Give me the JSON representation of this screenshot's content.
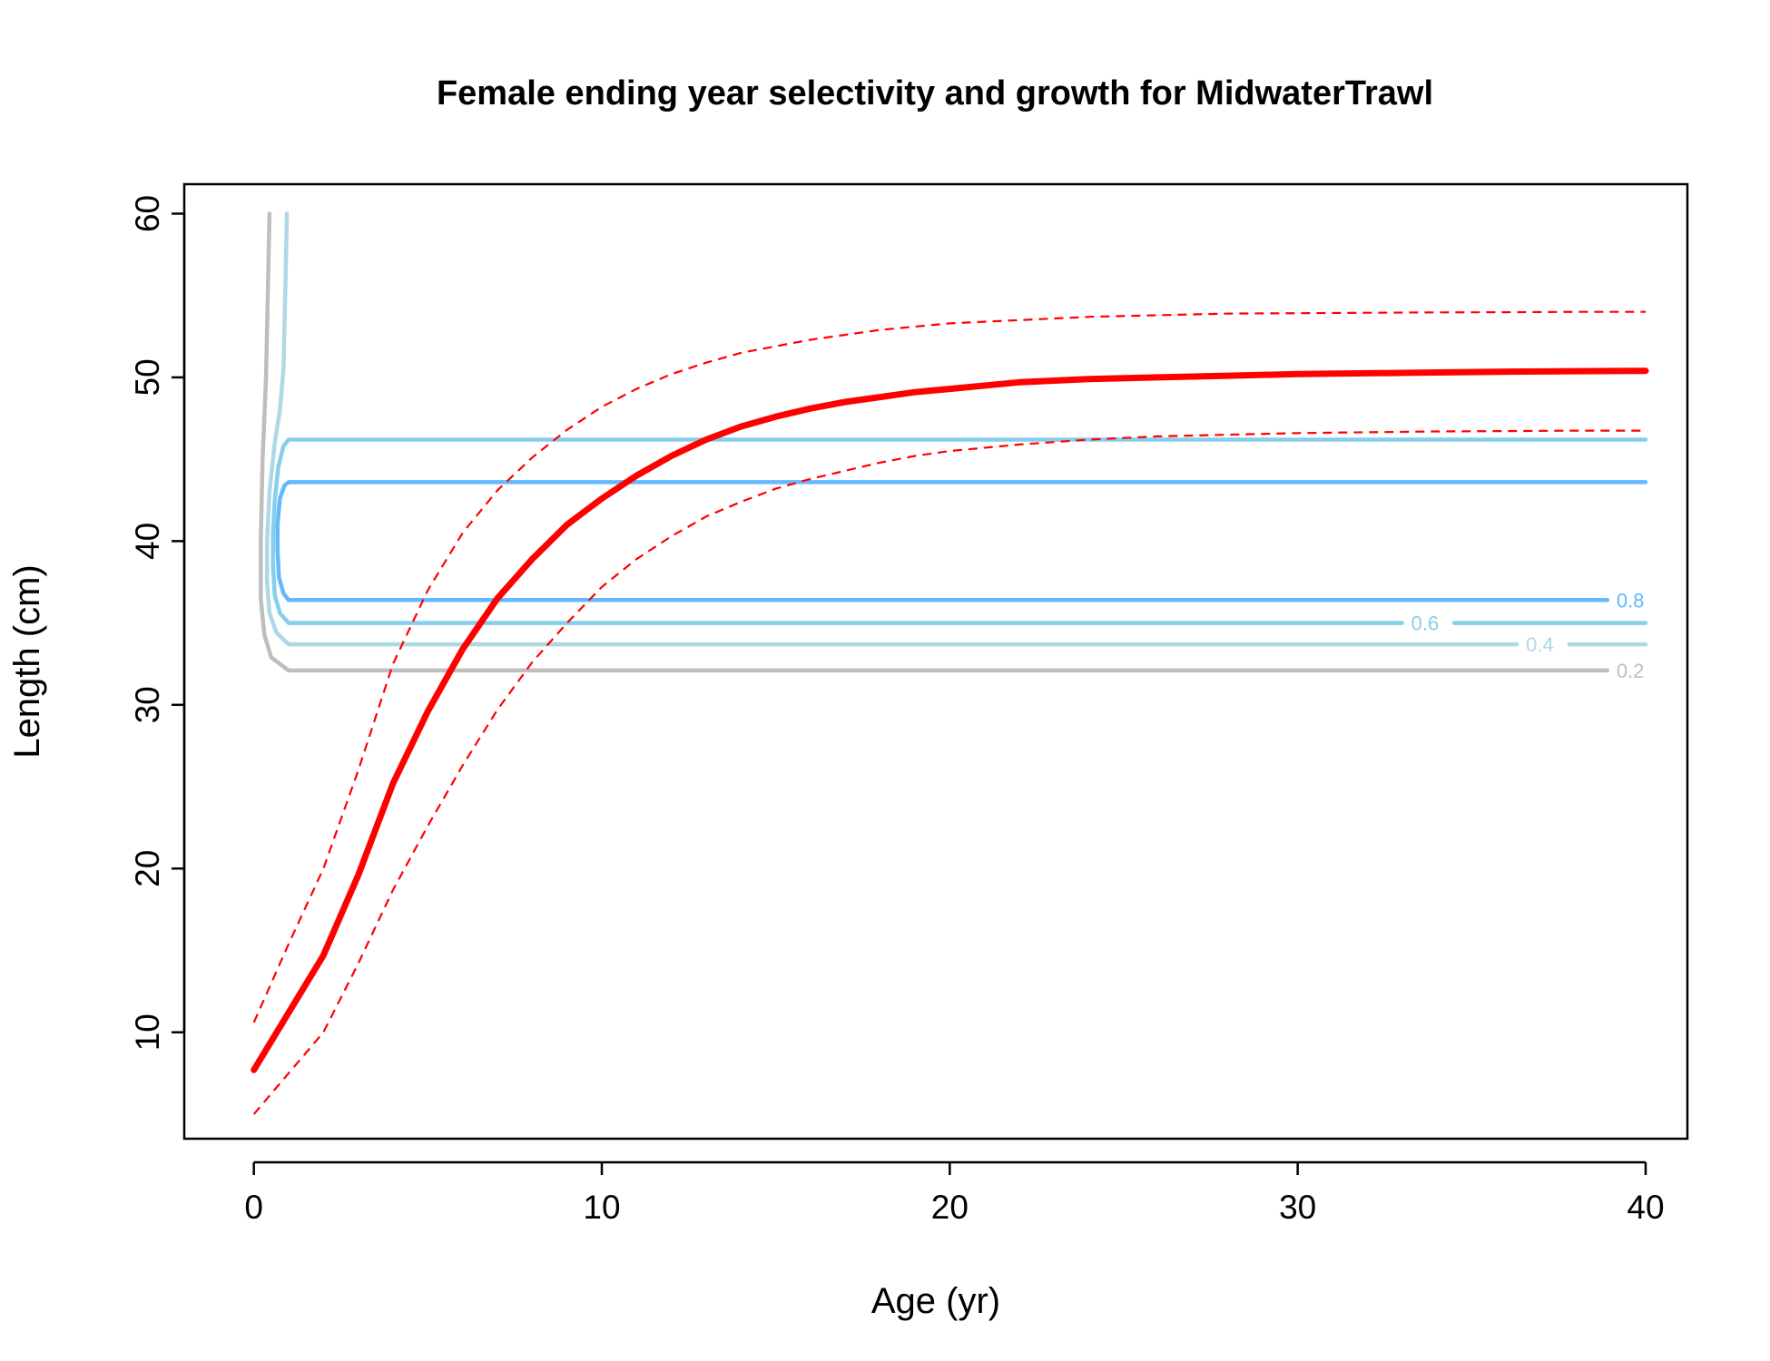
{
  "chart_data": {
    "type": "line",
    "title": "Female ending year selectivity and growth for MidwaterTrawl",
    "xlabel": "Age (yr)",
    "ylabel": "Length (cm)",
    "xlim": [
      -2,
      41.2
    ],
    "ylim": [
      3.5,
      61.8
    ],
    "x_ticks": [
      0,
      10,
      20,
      30,
      40
    ],
    "y_ticks": [
      10,
      20,
      30,
      40,
      50,
      60
    ],
    "grid": false,
    "growth": {
      "color": "#ff0000",
      "mean": [
        [
          0,
          7.7
        ],
        [
          1,
          11.2
        ],
        [
          2,
          14.7
        ],
        [
          3,
          19.6
        ],
        [
          4,
          25.2
        ],
        [
          5,
          29.6
        ],
        [
          6,
          33.4
        ],
        [
          7,
          36.5
        ],
        [
          8,
          38.9
        ],
        [
          9,
          41.0
        ],
        [
          10,
          42.6
        ],
        [
          11,
          44.0
        ],
        [
          12,
          45.2
        ],
        [
          13,
          46.2
        ],
        [
          14,
          47.0
        ],
        [
          15,
          47.6
        ],
        [
          16,
          48.1
        ],
        [
          17,
          48.5
        ],
        [
          18,
          48.8
        ],
        [
          19,
          49.1
        ],
        [
          20,
          49.3
        ],
        [
          22,
          49.7
        ],
        [
          24,
          49.9
        ],
        [
          26,
          50.0
        ],
        [
          28,
          50.1
        ],
        [
          30,
          50.2
        ],
        [
          32,
          50.25
        ],
        [
          34,
          50.3
        ],
        [
          36,
          50.35
        ],
        [
          38,
          50.38
        ],
        [
          40,
          50.4
        ]
      ],
      "upper": [
        [
          0,
          10.6
        ],
        [
          1,
          15.4
        ],
        [
          2,
          20.0
        ],
        [
          3,
          26.0
        ],
        [
          4,
          32.5
        ],
        [
          5,
          37.0
        ],
        [
          6,
          40.5
        ],
        [
          7,
          43.1
        ],
        [
          8,
          45.1
        ],
        [
          9,
          46.8
        ],
        [
          10,
          48.2
        ],
        [
          11,
          49.3
        ],
        [
          12,
          50.2
        ],
        [
          13,
          50.9
        ],
        [
          14,
          51.5
        ],
        [
          15,
          51.9
        ],
        [
          16,
          52.3
        ],
        [
          17,
          52.6
        ],
        [
          18,
          52.9
        ],
        [
          19,
          53.1
        ],
        [
          20,
          53.3
        ],
        [
          22,
          53.5
        ],
        [
          24,
          53.7
        ],
        [
          26,
          53.8
        ],
        [
          28,
          53.9
        ],
        [
          30,
          53.92
        ],
        [
          32,
          53.95
        ],
        [
          34,
          53.97
        ],
        [
          36,
          53.98
        ],
        [
          38,
          54.0
        ],
        [
          40,
          54.0
        ]
      ],
      "lower": [
        [
          0,
          5.0
        ],
        [
          1,
          7.5
        ],
        [
          2,
          10.0
        ],
        [
          3,
          14.2
        ],
        [
          4,
          18.7
        ],
        [
          5,
          22.6
        ],
        [
          6,
          26.3
        ],
        [
          7,
          29.7
        ],
        [
          8,
          32.6
        ],
        [
          9,
          35.0
        ],
        [
          10,
          37.2
        ],
        [
          11,
          38.9
        ],
        [
          12,
          40.3
        ],
        [
          13,
          41.5
        ],
        [
          14,
          42.4
        ],
        [
          15,
          43.2
        ],
        [
          16,
          43.8
        ],
        [
          17,
          44.3
        ],
        [
          18,
          44.8
        ],
        [
          19,
          45.2
        ],
        [
          20,
          45.5
        ],
        [
          22,
          45.9
        ],
        [
          24,
          46.2
        ],
        [
          26,
          46.4
        ],
        [
          28,
          46.5
        ],
        [
          30,
          46.6
        ],
        [
          32,
          46.65
        ],
        [
          34,
          46.7
        ],
        [
          36,
          46.72
        ],
        [
          38,
          46.75
        ],
        [
          40,
          46.75
        ]
      ]
    },
    "selectivity_contours": [
      {
        "level": 0.2,
        "label": "0.2",
        "color": "#bebebe",
        "points": [
          [
            38.9,
            32.1
          ],
          [
            1.0,
            32.1
          ],
          [
            0.5,
            32.9
          ],
          [
            0.3,
            34.3
          ],
          [
            0.2,
            36.5
          ],
          [
            0.2,
            40.0
          ],
          [
            0.25,
            45.0
          ],
          [
            0.35,
            50.0
          ],
          [
            0.4,
            55.0
          ],
          [
            0.45,
            60.0
          ]
        ]
      },
      {
        "level": 0.4,
        "label": "0.4",
        "color": "#add8e6",
        "points": [
          [
            36.3,
            33.7
          ],
          [
            1.0,
            33.7
          ],
          [
            0.65,
            34.4
          ],
          [
            0.45,
            35.6
          ],
          [
            0.38,
            37.5
          ],
          [
            0.38,
            40.0
          ],
          [
            0.45,
            43.0
          ],
          [
            0.6,
            46.0
          ],
          [
            0.75,
            48.0
          ],
          [
            0.85,
            50.5
          ],
          [
            0.9,
            55.0
          ],
          [
            0.95,
            60.0
          ]
        ]
      },
      {
        "level": 0.4,
        "label": "",
        "color": "#add8e6",
        "points": [
          [
            37.8,
            33.7
          ],
          [
            40.0,
            33.7
          ]
        ]
      },
      {
        "level": 0.6,
        "label": "0.6",
        "color": "#87ceeb",
        "points": [
          [
            33.0,
            35.0
          ],
          [
            1.0,
            35.0
          ],
          [
            0.75,
            35.6
          ],
          [
            0.6,
            36.7
          ],
          [
            0.55,
            38.5
          ],
          [
            0.55,
            40.5
          ],
          [
            0.6,
            42.5
          ],
          [
            0.7,
            44.5
          ],
          [
            0.85,
            45.8
          ],
          [
            1.0,
            46.2
          ],
          [
            40.0,
            46.2
          ]
        ]
      },
      {
        "level": 0.6,
        "label": "",
        "color": "#87ceeb",
        "points": [
          [
            34.5,
            35.0
          ],
          [
            40.0,
            35.0
          ]
        ]
      },
      {
        "level": 0.8,
        "label": "0.8",
        "color": "#63b8ff",
        "points": [
          [
            38.9,
            36.4
          ],
          [
            1.0,
            36.4
          ],
          [
            0.85,
            36.8
          ],
          [
            0.72,
            37.8
          ],
          [
            0.68,
            39.5
          ],
          [
            0.68,
            41.0
          ],
          [
            0.75,
            42.6
          ],
          [
            0.88,
            43.4
          ],
          [
            1.0,
            43.6
          ],
          [
            40.0,
            43.6
          ]
        ]
      }
    ]
  }
}
